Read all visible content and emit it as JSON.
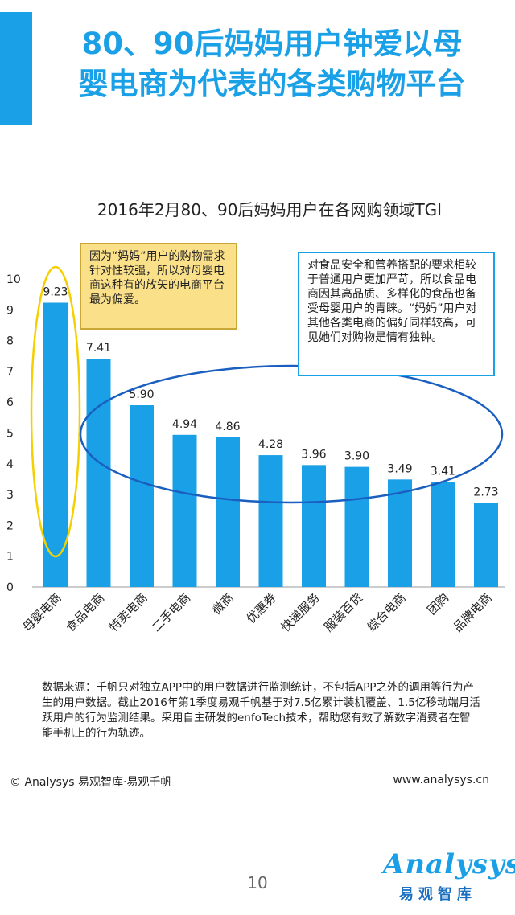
{
  "header": {
    "title_line1": "80、90后妈妈用户钟爱以母",
    "title_line2": "婴电商为代表的各类购物平台"
  },
  "chart_data": {
    "type": "bar",
    "title": "2016年2月80、90后妈妈用户在各网购领域TGI",
    "categories": [
      "母婴电商",
      "食品电商",
      "特卖电商",
      "二手电商",
      "微商",
      "优惠券",
      "快递服务",
      "服装百货",
      "综合电商",
      "团购",
      "品牌电商"
    ],
    "values": [
      9.23,
      7.41,
      5.9,
      4.94,
      4.86,
      4.28,
      3.96,
      3.9,
      3.49,
      3.41,
      2.73
    ],
    "value_labels": [
      "9.23",
      "7.41",
      "5.90",
      "4.94",
      "4.86",
      "4.28",
      "3.96",
      "3.90",
      "3.49",
      "3.41",
      "2.73"
    ],
    "yticks": [
      "0",
      "1",
      "2",
      "3",
      "4",
      "5",
      "6",
      "7",
      "8",
      "9",
      "10"
    ],
    "ylim": [
      0,
      10
    ],
    "bar_color": "#1aa0e6",
    "highlight_color": "#f5d000",
    "ellipse_color": "#1a5fc0"
  },
  "notes": {
    "yellow": "因为“妈妈”用户的购物需求针对性较强，所以对母婴电商这种有的放矢的电商平台最为偏爱。",
    "blue": "对食品安全和营养搭配的要求相较于普通用户更加严苛，所以食品电商因其高品质、多样化的食品也备受母婴用户的青睐。“妈妈”用户对其他各类电商的偏好同样较高，可见她们对购物是情有独钟。"
  },
  "source": "数据来源：千帆只对独立APP中的用户数据进行监测统计，不包括APP之外的调用等行为产生的用户数据。截止2016年第1季度易观千帆基于对7.5亿累计装机覆盖、1.5亿移动端月活跃用户的行为监测结果。采用自主研发的enfoTech技术，帮助您有效了解数字消费者在智能手机上的行为轨迹。",
  "footer": {
    "left": "© Analysys 易观智库·易观千帆",
    "right": "www.analysys.cn",
    "page": "10"
  },
  "logo": {
    "word": "Analysys",
    "cn": "易观智库"
  }
}
